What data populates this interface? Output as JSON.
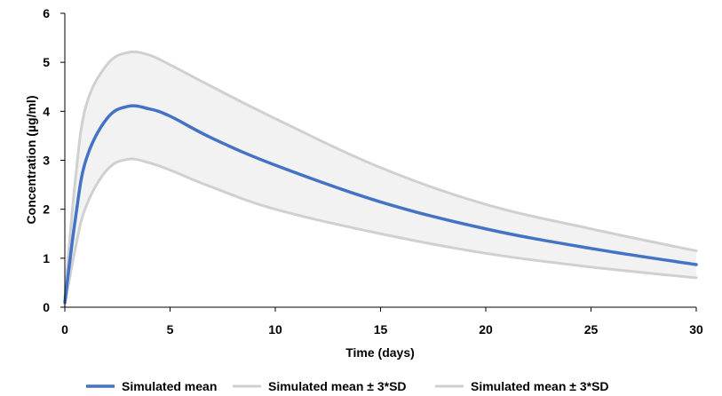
{
  "chart_data": {
    "type": "line",
    "title": "",
    "xlabel": "Time (days)",
    "ylabel": "Concentration (µg/ml)",
    "xlim": [
      0,
      30
    ],
    "ylim": [
      0,
      6
    ],
    "x_ticks": [
      "0",
      "5",
      "10",
      "15",
      "20",
      "25",
      "30"
    ],
    "y_ticks": [
      "0",
      "1",
      "2",
      "3",
      "4",
      "5",
      "6"
    ],
    "grid": false,
    "legend_position": "bottom",
    "band_fill_color": "#f2f2f2",
    "series": [
      {
        "name": "Simulated mean",
        "color": "#4472c4",
        "x": [
          0,
          0.5,
          1,
          2,
          3,
          4,
          5,
          7,
          10,
          15,
          20,
          25,
          30
        ],
        "y": [
          0.1,
          1.8,
          3.0,
          3.85,
          4.1,
          4.05,
          3.9,
          3.45,
          2.9,
          2.15,
          1.6,
          1.2,
          0.87
        ]
      },
      {
        "name": "Simulated mean ± 3*SD",
        "color": "#d0d0d0",
        "x": [
          0,
          0.5,
          1,
          2,
          3,
          4,
          5,
          7,
          10,
          15,
          20,
          25,
          30
        ],
        "y": [
          0.2,
          2.6,
          4.1,
          4.95,
          5.2,
          5.15,
          4.95,
          4.5,
          3.85,
          2.85,
          2.1,
          1.6,
          1.15
        ]
      },
      {
        "name": "Simulated mean ± 3*SD",
        "color": "#d0d0d0",
        "x": [
          0,
          0.5,
          1,
          2,
          3,
          4,
          5,
          7,
          10,
          15,
          20,
          25,
          30
        ],
        "y": [
          0.05,
          1.2,
          2.05,
          2.8,
          3.02,
          2.95,
          2.8,
          2.45,
          2.0,
          1.5,
          1.1,
          0.82,
          0.6
        ]
      }
    ]
  }
}
